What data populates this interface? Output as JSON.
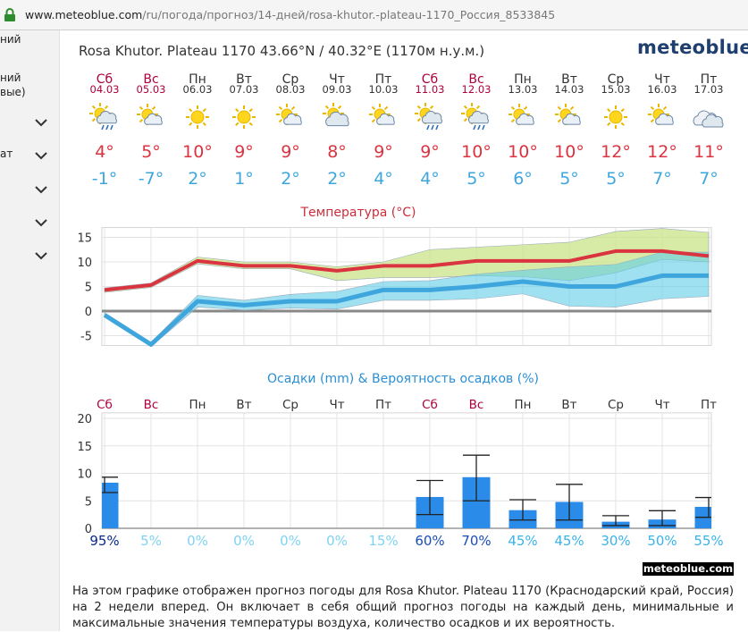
{
  "browser": {
    "url_host": "www.meteoblue.com",
    "url_path": "/ru/погода/прогноз/14-дней/rosa-khutor.-plateau-1170_Россия_8533845"
  },
  "sidebar": {
    "items": [
      {
        "label": "ний"
      },
      {
        "label": "ний"
      },
      {
        "label": "вые)"
      },
      {
        "label": "ат"
      }
    ]
  },
  "header": {
    "title": "Rosa Khutor. Plateau 1170  43.66°N / 40.32°E (1170м н.у.м.)",
    "logo": "meteoblue"
  },
  "days": [
    {
      "dow": "Сб",
      "date": "04.03",
      "weekend": true,
      "icon": "sun-cloud-rain-icon",
      "tmax": "4°",
      "tmin": "-1°",
      "prob": "95%"
    },
    {
      "dow": "Вс",
      "date": "05.03",
      "weekend": true,
      "icon": "sun-cloud-icon",
      "tmax": "5°",
      "tmin": "-7°",
      "prob": "5%"
    },
    {
      "dow": "Пн",
      "date": "06.03",
      "weekend": false,
      "icon": "sun-icon",
      "tmax": "10°",
      "tmin": "2°",
      "prob": "0%"
    },
    {
      "dow": "Вт",
      "date": "07.03",
      "weekend": false,
      "icon": "sun-icon",
      "tmax": "9°",
      "tmin": "1°",
      "prob": "0%"
    },
    {
      "dow": "Ср",
      "date": "08.03",
      "weekend": false,
      "icon": "sun-cloud-icon",
      "tmax": "9°",
      "tmin": "2°",
      "prob": "0%"
    },
    {
      "dow": "Чт",
      "date": "09.03",
      "weekend": false,
      "icon": "cloud-sun-icon",
      "tmax": "8°",
      "tmin": "2°",
      "prob": "0%"
    },
    {
      "dow": "Пт",
      "date": "10.03",
      "weekend": false,
      "icon": "sun-cloud-icon",
      "tmax": "9°",
      "tmin": "4°",
      "prob": "15%"
    },
    {
      "dow": "Сб",
      "date": "11.03",
      "weekend": true,
      "icon": "sun-cloud-rain-icon",
      "tmax": "9°",
      "tmin": "4°",
      "prob": "60%"
    },
    {
      "dow": "Вс",
      "date": "12.03",
      "weekend": true,
      "icon": "sun-cloud-rain-icon",
      "tmax": "10°",
      "tmin": "5°",
      "prob": "70%"
    },
    {
      "dow": "Пн",
      "date": "13.03",
      "weekend": false,
      "icon": "sun-cloud-icon",
      "tmax": "10°",
      "tmin": "6°",
      "prob": "45%"
    },
    {
      "dow": "Вт",
      "date": "14.03",
      "weekend": false,
      "icon": "sun-cloud-icon",
      "tmax": "10°",
      "tmin": "5°",
      "prob": "45%"
    },
    {
      "dow": "Ср",
      "date": "15.03",
      "weekend": false,
      "icon": "sun-icon",
      "tmax": "12°",
      "tmin": "5°",
      "prob": "30%"
    },
    {
      "dow": "Чт",
      "date": "16.03",
      "weekend": false,
      "icon": "sun-cloud-icon",
      "tmax": "12°",
      "tmin": "7°",
      "prob": "50%"
    },
    {
      "dow": "Пт",
      "date": "17.03",
      "weekend": false,
      "icon": "cloud-icon",
      "tmax": "11°",
      "tmin": "7°",
      "prob": "55%"
    }
  ],
  "chart_data": [
    {
      "type": "line",
      "title": "Температура (°C)",
      "categories": [
        "Сб",
        "Вс",
        "Пн",
        "Вт",
        "Ср",
        "Чт",
        "Пт",
        "Сб",
        "Вс",
        "Пн",
        "Вт",
        "Ср",
        "Чт",
        "Пт"
      ],
      "ylim": [
        -7,
        17
      ],
      "yticks": [
        15,
        10,
        5,
        0,
        -5
      ],
      "grid": true,
      "series": [
        {
          "values": [
            4.3,
            5.3,
            10.2,
            9.2,
            9.2,
            8.2,
            9.2,
            9.2,
            10.2,
            10.2,
            10.2,
            12.2,
            12.2,
            11.2
          ],
          "upper": [
            4.7,
            5.7,
            11.0,
            10.0,
            10.0,
            9.0,
            10.0,
            12.5,
            13.0,
            13.5,
            14.0,
            16.2,
            16.8,
            16.0
          ],
          "lower": [
            3.8,
            4.8,
            9.6,
            8.6,
            8.6,
            6.2,
            6.8,
            6.8,
            7.2,
            7.0,
            6.2,
            7.8,
            10.5,
            10.0
          ]
        },
        {
          "values": [
            -0.8,
            -6.8,
            2.0,
            1.2,
            2.0,
            2.0,
            4.3,
            4.3,
            5.0,
            6.0,
            5.0,
            5.0,
            7.2,
            7.2
          ],
          "upper": [
            -0.4,
            -6.4,
            3.2,
            2.2,
            3.4,
            4.0,
            6.0,
            6.2,
            7.5,
            8.3,
            9.0,
            9.5,
            12.0,
            12.0
          ],
          "lower": [
            -1.2,
            -7.2,
            0.8,
            0.2,
            0.6,
            0.4,
            2.2,
            2.2,
            2.5,
            3.5,
            1.0,
            0.8,
            2.5,
            3.0
          ]
        }
      ]
    },
    {
      "type": "bar",
      "title": "Осадки (mm) & Вероятность осадков (%)",
      "categories": [
        "Сб",
        "Вс",
        "Пн",
        "Вт",
        "Ср",
        "Чт",
        "Пт",
        "Сб",
        "Вс",
        "Пн",
        "Вт",
        "Ср",
        "Чт",
        "Пт"
      ],
      "values": [
        8.3,
        0,
        0,
        0,
        0,
        0,
        0,
        5.7,
        9.3,
        3.3,
        4.8,
        1.2,
        1.6,
        3.9
      ],
      "err_low": [
        6.5,
        0,
        0,
        0,
        0,
        0,
        0,
        2.5,
        5.0,
        1.5,
        1.5,
        0.5,
        0.5,
        2.0
      ],
      "err_high": [
        9.3,
        0,
        0,
        0,
        0,
        0,
        0,
        8.7,
        13.3,
        5.2,
        8.0,
        2.3,
        3.2,
        5.6
      ],
      "ylim": [
        0,
        21
      ],
      "yticks": [
        20,
        15,
        10,
        5,
        0
      ],
      "grid": true
    }
  ],
  "footer": {
    "badge": "meteoblue.com",
    "description": "На этом графике отображен прогноз погоды для Rosa Khutor. Plateau 1170 (Краснодарский край, Россия) на 2 недели вперед. Он включает в себя общий прогноз погоды на каждый день, минимальные и максимальные значения температуры воздуха, количество осадков и их вероятность."
  },
  "colors": {
    "weekend": "#b0003a",
    "tmax": "#d9343f",
    "tmin": "#3fa6dd",
    "prob_high": "#1a4db8",
    "prob_low": "#7fd3f1",
    "bar": "#2b8be8"
  }
}
